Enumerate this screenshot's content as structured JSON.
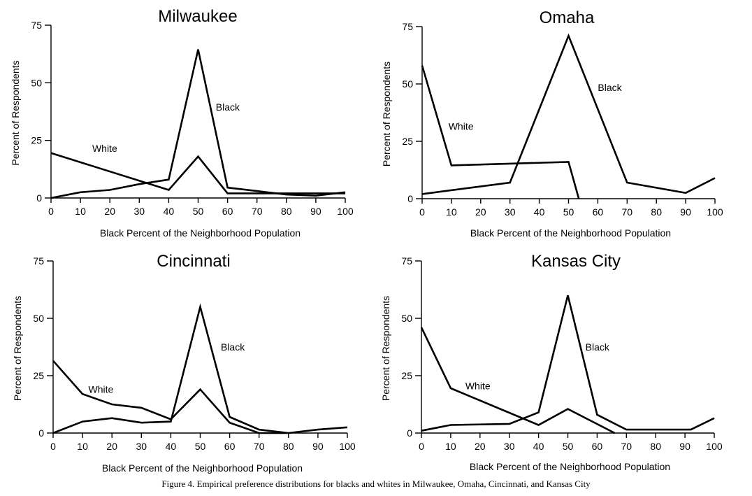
{
  "caption": "Figure 4.   Empirical preference distributions for blacks and whites in Milwaukee, Omaha, Cincinnati, and Kansas City",
  "chart_data": [
    {
      "type": "line",
      "title": "Milwaukee",
      "xlabel": "Black Percent of the Neighborhood Population",
      "ylabel": "Percent of Respondents",
      "xlim": [
        0,
        100
      ],
      "ylim": [
        0,
        75
      ],
      "xticks": [
        0,
        10,
        20,
        30,
        40,
        50,
        60,
        70,
        80,
        90,
        100
      ],
      "yticks": [
        0,
        25,
        50,
        75
      ],
      "series": [
        {
          "name": "White",
          "x": [
            0,
            40,
            50,
            60,
            100
          ],
          "y": [
            19.5,
            3.5,
            18,
            2,
            2
          ]
        },
        {
          "name": "Black",
          "x": [
            0,
            10,
            20,
            30,
            40,
            50,
            60,
            70,
            80,
            90,
            100
          ],
          "y": [
            0,
            2.5,
            3.5,
            6,
            8,
            64.5,
            4.5,
            3,
            1.5,
            1,
            2.5
          ]
        }
      ]
    },
    {
      "type": "line",
      "title": "Omaha",
      "xlabel": "Black Percent of the Neighborhood Population",
      "ylabel": "Percent of Respondents",
      "xlim": [
        0,
        100
      ],
      "ylim": [
        0,
        75
      ],
      "xticks": [
        0,
        10,
        20,
        30,
        40,
        50,
        60,
        70,
        80,
        90,
        100
      ],
      "yticks": [
        0,
        25,
        50,
        75
      ],
      "series": [
        {
          "name": "White",
          "x": [
            0,
            10,
            50,
            53.5
          ],
          "y": [
            58,
            14.5,
            16,
            0
          ]
        },
        {
          "name": "Black",
          "x": [
            0,
            30,
            50,
            70,
            90,
            100
          ],
          "y": [
            2,
            7,
            71,
            7,
            2.5,
            9
          ]
        }
      ]
    },
    {
      "type": "line",
      "title": "Cincinnati",
      "xlabel": "Black Percent of the Neighborhood Population",
      "ylabel": "Percent of Respondents",
      "xlim": [
        0,
        100
      ],
      "ylim": [
        0,
        75
      ],
      "xticks": [
        0,
        10,
        20,
        30,
        40,
        50,
        60,
        70,
        80,
        90,
        100
      ],
      "yticks": [
        0,
        25,
        50,
        75
      ],
      "series": [
        {
          "name": "White",
          "x": [
            0,
            10,
            20,
            30,
            40,
            50,
            60,
            70,
            80
          ],
          "y": [
            31.5,
            17,
            12.5,
            11,
            6,
            19,
            4.5,
            0,
            0
          ]
        },
        {
          "name": "Black",
          "x": [
            0,
            10,
            20,
            30,
            40,
            50,
            60,
            70,
            80,
            90,
            100
          ],
          "y": [
            0,
            5,
            6.5,
            4.5,
            5,
            55,
            7,
            1.5,
            0,
            1.5,
            2.5
          ]
        }
      ]
    },
    {
      "type": "line",
      "title": "Kansas City",
      "xlabel": "Black Percent of the Neighborhood Population",
      "ylabel": "Percent of Respondents",
      "xlim": [
        0,
        100
      ],
      "ylim": [
        0,
        75
      ],
      "xticks": [
        0,
        10,
        20,
        30,
        40,
        50,
        60,
        70,
        80,
        90,
        100
      ],
      "yticks": [
        0,
        25,
        50,
        75
      ],
      "series": [
        {
          "name": "White",
          "x": [
            0,
            10,
            40,
            50,
            66
          ],
          "y": [
            46,
            19.5,
            3.5,
            10.5,
            0
          ]
        },
        {
          "name": "Black",
          "x": [
            0,
            10,
            30,
            40,
            50,
            60,
            70,
            92,
            100
          ],
          "y": [
            1,
            3.5,
            4,
            9,
            60,
            8,
            1.5,
            1.5,
            6.5
          ]
        }
      ]
    }
  ]
}
